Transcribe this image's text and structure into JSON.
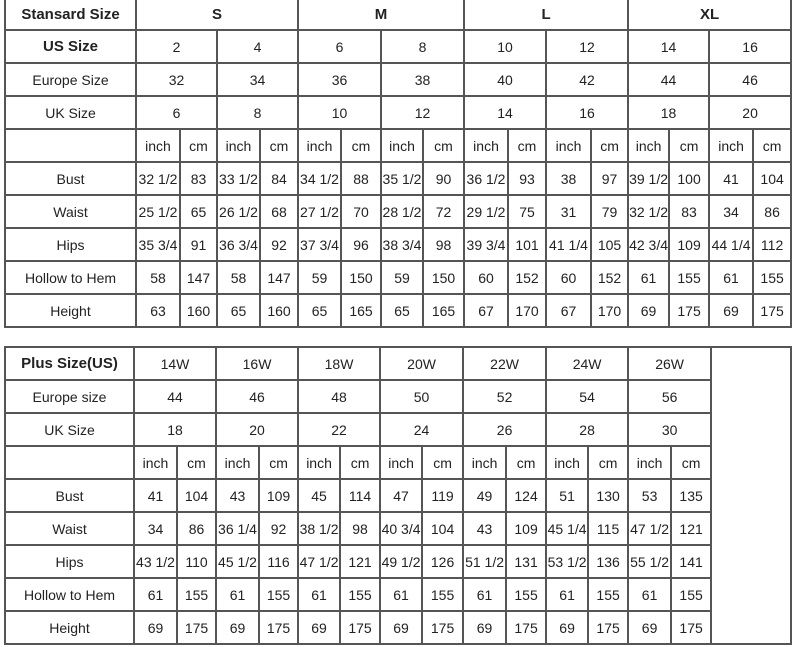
{
  "standard": {
    "header_label": "Stansard Size",
    "groups": [
      "S",
      "M",
      "L",
      "XL"
    ],
    "size_rows": [
      {
        "label": "US Size",
        "values": [
          "2",
          "4",
          "6",
          "8",
          "10",
          "12",
          "14",
          "16"
        ]
      },
      {
        "label": "Europe Size",
        "values": [
          "32",
          "34",
          "36",
          "38",
          "40",
          "42",
          "44",
          "46"
        ]
      },
      {
        "label": "UK Size",
        "values": [
          "6",
          "8",
          "10",
          "12",
          "14",
          "16",
          "18",
          "20"
        ]
      }
    ],
    "units": [
      "inch",
      "cm",
      "inch",
      "cm",
      "inch",
      "cm",
      "inch",
      "cm",
      "inch",
      "cm",
      "inch",
      "cm",
      "inch",
      "cm",
      "inch",
      "cm"
    ],
    "measure_rows": [
      {
        "label": "Bust",
        "values": [
          "32 1/2",
          "83",
          "33 1/2",
          "84",
          "34 1/2",
          "88",
          "35 1/2",
          "90",
          "36 1/2",
          "93",
          "38",
          "97",
          "39 1/2",
          "100",
          "41",
          "104"
        ]
      },
      {
        "label": "Waist",
        "values": [
          "25 1/2",
          "65",
          "26 1/2",
          "68",
          "27 1/2",
          "70",
          "28 1/2",
          "72",
          "29 1/2",
          "75",
          "31",
          "79",
          "32 1/2",
          "83",
          "34",
          "86"
        ]
      },
      {
        "label": "Hips",
        "values": [
          "35 3/4",
          "91",
          "36 3/4",
          "92",
          "37 3/4",
          "96",
          "38 3/4",
          "98",
          "39 3/4",
          "101",
          "41 1/4",
          "105",
          "42 3/4",
          "109",
          "44 1/4",
          "112"
        ]
      },
      {
        "label": "Hollow to Hem",
        "values": [
          "58",
          "147",
          "58",
          "147",
          "59",
          "150",
          "59",
          "150",
          "60",
          "152",
          "60",
          "152",
          "61",
          "155",
          "61",
          "155"
        ]
      },
      {
        "label": "Height",
        "values": [
          "63",
          "160",
          "65",
          "160",
          "65",
          "165",
          "65",
          "165",
          "67",
          "170",
          "67",
          "170",
          "69",
          "175",
          "69",
          "175"
        ]
      }
    ]
  },
  "plus": {
    "header_label": "Plus Size(US)",
    "sizes": [
      "14W",
      "16W",
      "18W",
      "20W",
      "22W",
      "24W",
      "26W"
    ],
    "size_rows": [
      {
        "label": "Europe size",
        "values": [
          "44",
          "46",
          "48",
          "50",
          "52",
          "54",
          "56"
        ]
      },
      {
        "label": "UK Size",
        "values": [
          "18",
          "20",
          "22",
          "24",
          "26",
          "28",
          "30"
        ]
      }
    ],
    "units": [
      "inch",
      "cm",
      "inch",
      "cm",
      "inch",
      "cm",
      "inch",
      "cm",
      "inch",
      "cm",
      "inch",
      "cm",
      "inch",
      "cm"
    ],
    "measure_rows": [
      {
        "label": "Bust",
        "values": [
          "41",
          "104",
          "43",
          "109",
          "45",
          "114",
          "47",
          "119",
          "49",
          "124",
          "51",
          "130",
          "53",
          "135"
        ]
      },
      {
        "label": "Waist",
        "values": [
          "34",
          "86",
          "36 1/4",
          "92",
          "38 1/2",
          "98",
          "40 3/4",
          "104",
          "43",
          "109",
          "45 1/4",
          "115",
          "47 1/2",
          "121"
        ]
      },
      {
        "label": "Hips",
        "values": [
          "43 1/2",
          "110",
          "45 1/2",
          "116",
          "47 1/2",
          "121",
          "49 1/2",
          "126",
          "51 1/2",
          "131",
          "53 1/2",
          "136",
          "55 1/2",
          "141"
        ]
      },
      {
        "label": "Hollow to Hem",
        "values": [
          "61",
          "155",
          "61",
          "155",
          "61",
          "155",
          "61",
          "155",
          "61",
          "155",
          "61",
          "155",
          "61",
          "155"
        ]
      },
      {
        "label": "Height",
        "values": [
          "69",
          "175",
          "69",
          "175",
          "69",
          "175",
          "69",
          "175",
          "69",
          "175",
          "69",
          "175",
          "69",
          "175"
        ]
      }
    ]
  }
}
